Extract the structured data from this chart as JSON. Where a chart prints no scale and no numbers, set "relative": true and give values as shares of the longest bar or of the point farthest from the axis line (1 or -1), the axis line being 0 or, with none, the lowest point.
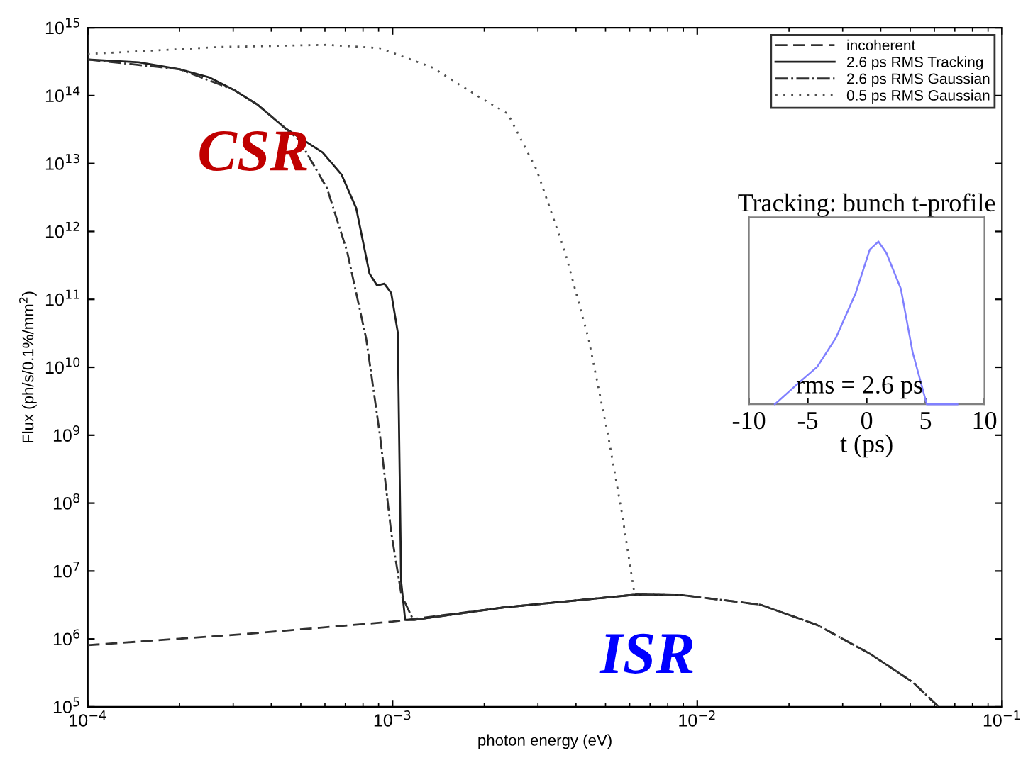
{
  "chart_data": [
    {
      "type": "line",
      "xlabel": "photon energy (eV)",
      "ylabel": "Flux (ph/s/0.1%/mm$^{2}$)",
      "log": "xy",
      "xlim": [
        0.0001,
        0.1
      ],
      "ylim": [
        100000,
        1000000000000000
      ],
      "xticks": [
        {
          "value": 0.0001,
          "label": "10$^{−4}$"
        },
        {
          "value": 0.001,
          "label": "10$^{−3}$"
        },
        {
          "value": 0.01,
          "label": "10$^{−2}$"
        },
        {
          "value": 0.1,
          "label": "10$^{−1}$"
        }
      ],
      "yticks": [
        {
          "value": 100000,
          "label": "10$^{5}$"
        },
        {
          "value": 1000000,
          "label": "10$^{6}$"
        },
        {
          "value": 10000000,
          "label": "10$^{7}$"
        },
        {
          "value": 100000000,
          "label": "10$^{8}$"
        },
        {
          "value": 1000000000,
          "label": "10$^{9}$"
        },
        {
          "value": 10000000000,
          "label": "10$^{10}$"
        },
        {
          "value": 100000000000,
          "label": "10$^{11}$"
        },
        {
          "value": 1000000000000,
          "label": "10$^{12}$"
        },
        {
          "value": 10000000000000,
          "label": "10$^{13}$"
        },
        {
          "value": 100000000000000,
          "label": "10$^{14}$"
        },
        {
          "value": 1000000000000000,
          "label": "10$^{15}$"
        }
      ],
      "legend": "top right",
      "grid": false,
      "annotations": [
        "CSR",
        "ISR"
      ],
      "series": [
        {
          "name": "incoherent",
          "color": "#303030",
          "line_style": "dashed",
          "x": [
            0.0001,
            0.00032,
            0.001,
            0.0023,
            0.0063,
            0.009,
            0.0161,
            0.0248,
            0.037,
            0.051,
            0.062
          ],
          "values": [
            810000,
            1170000,
            1800000,
            2900000,
            4500000,
            4400000,
            3200000,
            1600000,
            600000,
            230000,
            100000
          ]
        },
        {
          "name": "2.6 ps RMS Tracking",
          "color": "#202020",
          "line_style": "solid",
          "x": [
            0.0001,
            0.000147,
            0.0002,
            0.00025,
            0.0003,
            0.00036,
            0.000445,
            0.00059,
            0.00068,
            0.00076,
            0.00084,
            0.00089,
            0.00094,
            0.00099,
            0.00104,
            0.001067,
            0.0011,
            0.00117,
            0.0023,
            0.0063,
            0.009
          ],
          "values": [
            340000000000000,
            310000000000000,
            245000000000000,
            186000000000000,
            123000000000000,
            74000000000000,
            33000000000000,
            14500000000000,
            6900000000000,
            2200000000000,
            240000000000,
            160000000000,
            170000000000,
            124000000000,
            33000000000,
            7000000,
            1900000,
            1900000,
            2900000,
            4500000,
            4400000
          ]
        },
        {
          "name": "2.6 ps RMS Gaussian",
          "color": "#303030",
          "line_style": "dashdot",
          "x": [
            0.0001,
            0.0002,
            0.0003,
            0.00036,
            0.000495,
            0.00061,
            0.00071,
            0.00082,
            0.00091,
            0.00099,
            0.00107,
            0.00117,
            0.0023,
            0.0063,
            0.009,
            0.0161,
            0.0248,
            0.037,
            0.051,
            0.062
          ],
          "values": [
            340000000000000,
            245000000000000,
            123000000000000,
            74000000000000,
            22000000000000,
            4300000000000,
            500000000000,
            26000000000,
            980000000,
            37000000,
            4400000,
            1900000,
            2900000,
            4500000,
            4400000,
            3200000,
            1600000,
            600000,
            230000,
            100000
          ]
        },
        {
          "name": "0.5 ps RMS Gaussian",
          "color": "#505050",
          "line_style": "dotted",
          "x": [
            0.0001,
            0.00027,
            0.00061,
            0.00091,
            0.00135,
            0.00192,
            0.00239,
            0.00297,
            0.00368,
            0.0044,
            0.0051,
            0.00566,
            0.0062,
            0.0063
          ],
          "values": [
            410000000000000,
            520000000000000,
            560000000000000,
            500000000000000,
            260000000000000,
            96000000000000,
            54000000000000,
            8100000000000,
            500000000000,
            26000000000,
            980000000,
            71000000,
            5100000,
            4500000
          ]
        }
      ]
    },
    {
      "type": "line",
      "title": "Tracking: bunch t-profile",
      "xlabel": "t (ps)",
      "relative": true,
      "xlim": [
        -10,
        10
      ],
      "xticks": [
        -10,
        -5,
        0,
        5,
        10
      ],
      "tick_labels": "x",
      "annotations": [
        "rms = 2.6 ps"
      ],
      "series": [
        {
          "color": "#8080ff",
          "x": [
            -7.8,
            -5.8,
            -4.2,
            -2.6,
            -0.95,
            0.26,
            1.0,
            1.67,
            2.9,
            3.9,
            5.1,
            7.7
          ],
          "values": [
            0,
            0.13,
            0.23,
            0.41,
            0.68,
            0.95,
            1.0,
            0.93,
            0.71,
            0.32,
            0,
            0
          ]
        }
      ]
    }
  ]
}
